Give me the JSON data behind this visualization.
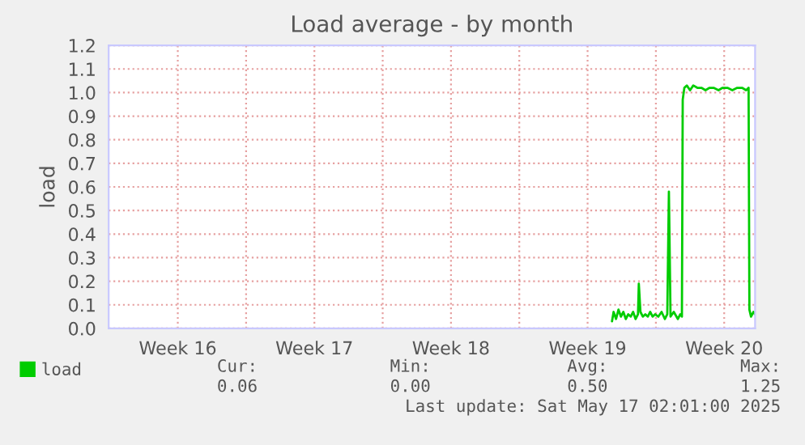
{
  "chart_data": {
    "type": "line",
    "title": "Load average - by month",
    "ylabel": "load",
    "x": [
      "2025-05-09T18:00",
      "2025-05-09T20:00",
      "2025-05-09T23:00",
      "2025-05-10T02:00",
      "2025-05-10T05:00",
      "2025-05-10T08:00",
      "2025-05-10T11:00",
      "2025-05-10T14:00",
      "2025-05-10T17:00",
      "2025-05-10T20:00",
      "2025-05-10T23:00",
      "2025-05-11T02:00",
      "2025-05-11T03:00",
      "2025-05-11T05:00",
      "2025-05-11T08:00",
      "2025-05-11T11:00",
      "2025-05-11T14:00",
      "2025-05-11T17:00",
      "2025-05-11T20:00",
      "2025-05-11T23:00",
      "2025-05-12T03:00",
      "2025-05-12T07:00",
      "2025-05-12T11:00",
      "2025-05-12T14:00",
      "2025-05-12T16:00",
      "2025-05-12T18:00",
      "2025-05-12T22:00",
      "2025-05-13T03:00",
      "2025-05-13T06:00",
      "2025-05-13T08:00",
      "2025-05-13T09:00",
      "2025-05-13T11:00",
      "2025-05-13T14:00",
      "2025-05-13T18:00",
      "2025-05-13T22:00",
      "2025-05-14T03:00",
      "2025-05-14T08:00",
      "2025-05-14T13:00",
      "2025-05-14T18:00",
      "2025-05-14T23:00",
      "2025-05-15T05:00",
      "2025-05-15T10:00",
      "2025-05-15T16:00",
      "2025-05-15T22:00",
      "2025-05-16T04:00",
      "2025-05-16T10:00",
      "2025-05-16T15:00",
      "2025-05-16T18:00",
      "2025-05-16T19:00",
      "2025-05-16T21:00",
      "2025-05-17T00:00",
      "2025-05-17T02:00"
    ],
    "series": [
      {
        "name": "load",
        "color": "#00cc00",
        "values": [
          0.03,
          0.07,
          0.04,
          0.08,
          0.05,
          0.07,
          0.04,
          0.06,
          0.05,
          0.07,
          0.04,
          0.06,
          0.19,
          0.07,
          0.05,
          0.06,
          0.05,
          0.07,
          0.05,
          0.06,
          0.05,
          0.07,
          0.04,
          0.06,
          0.58,
          0.05,
          0.07,
          0.04,
          0.06,
          0.05,
          0.97,
          1.02,
          1.03,
          1.01,
          1.03,
          1.02,
          1.02,
          1.01,
          1.02,
          1.02,
          1.01,
          1.02,
          1.02,
          1.01,
          1.02,
          1.02,
          1.01,
          1.02,
          0.08,
          0.05,
          0.07,
          0.06
        ]
      }
    ],
    "xlim": [
      "2025-04-13T23:00",
      "2025-05-17T02:00"
    ],
    "xticks": [
      {
        "value": "2025-04-17T12:00",
        "label": "Week 16"
      },
      {
        "value": "2025-04-21",
        "label": null
      },
      {
        "value": "2025-04-24T12:00",
        "label": "Week 17"
      },
      {
        "value": "2025-04-28",
        "label": null
      },
      {
        "value": "2025-05-01T12:00",
        "label": "Week 18"
      },
      {
        "value": "2025-05-05",
        "label": null
      },
      {
        "value": "2025-05-08T12:00",
        "label": "Week 19"
      },
      {
        "value": "2025-05-12",
        "label": null
      },
      {
        "value": "2025-05-15T12:00",
        "label": "Week 20"
      }
    ],
    "ylim": [
      0,
      1.2
    ],
    "yticks": [
      {
        "value": 0,
        "label": "0.0"
      },
      {
        "value": 0.1,
        "label": "0.1"
      },
      {
        "value": 0.2,
        "label": "0.2"
      },
      {
        "value": 0.3,
        "label": "0.3"
      },
      {
        "value": 0.4,
        "label": "0.4"
      },
      {
        "value": 0.5,
        "label": "0.5"
      },
      {
        "value": 0.6,
        "label": "0.6"
      },
      {
        "value": 0.7,
        "label": "0.7"
      },
      {
        "value": 0.8,
        "label": "0.8"
      },
      {
        "value": 0.9,
        "label": "0.9"
      },
      {
        "value": 1.0,
        "label": "1.0"
      },
      {
        "value": 1.1,
        "label": "1.1"
      },
      {
        "value": 1.2,
        "label": "1.2"
      }
    ],
    "grid": true,
    "legend": "bottom left",
    "marker": "none",
    "line_style": "solid",
    "annotations": [
      "Cur:",
      "0.06",
      "Min:",
      "0.00",
      "Avg:",
      "0.50",
      "Max:",
      "1.25",
      "Last update: Sat May 17 02:01:00 2025"
    ]
  }
}
